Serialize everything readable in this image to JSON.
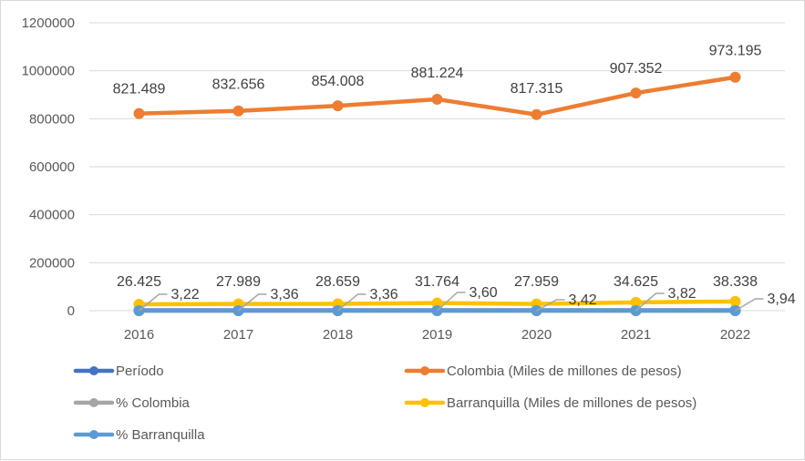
{
  "chart_data": {
    "type": "line",
    "title": "",
    "xlabel": "",
    "ylabel": "",
    "categories": [
      "2016",
      "2017",
      "2018",
      "2019",
      "2020",
      "2021",
      "2022"
    ],
    "ylim": [
      0,
      1200000
    ],
    "yticks": [
      0,
      200000,
      400000,
      600000,
      800000,
      1000000,
      1200000
    ],
    "ytick_labels": [
      "0",
      "200000",
      "400000",
      "600000",
      "800000",
      "1000000",
      "1200000"
    ],
    "grid": true,
    "legend_position": "bottom",
    "series": [
      {
        "name": "Período",
        "color": "#4472c4",
        "values": [
          2016,
          2017,
          2018,
          2019,
          2020,
          2021,
          2022
        ],
        "labels": null
      },
      {
        "name": "Colombia (Miles de millones de pesos)",
        "color": "#ed7d31",
        "values": [
          821489,
          832656,
          854008,
          881224,
          817315,
          907352,
          973195
        ],
        "labels": [
          "821.489",
          "832.656",
          "854.008",
          "881.224",
          "817.315",
          "907.352",
          "973.195"
        ]
      },
      {
        "name": "% Colombia",
        "color": "#a5a5a5",
        "values": [
          3.22,
          3.36,
          3.36,
          3.6,
          3.42,
          3.82,
          3.94
        ],
        "labels": [
          "3,22",
          "3,36",
          "3,36",
          "3,60",
          "3,42",
          "3,82",
          "3,94"
        ]
      },
      {
        "name": "Barranquilla (Miles de millones de pesos)",
        "color": "#ffc000",
        "values": [
          26425,
          27989,
          28659,
          31764,
          27959,
          34625,
          38338
        ],
        "labels": [
          "26.425",
          "27.989",
          "28.659",
          "31.764",
          "27.959",
          "34.625",
          "38.338"
        ]
      },
      {
        "name": "% Barranquilla",
        "color": "#5b9bd5",
        "values": [
          null,
          null,
          null,
          null,
          null,
          null,
          null
        ],
        "labels": null
      }
    ]
  }
}
